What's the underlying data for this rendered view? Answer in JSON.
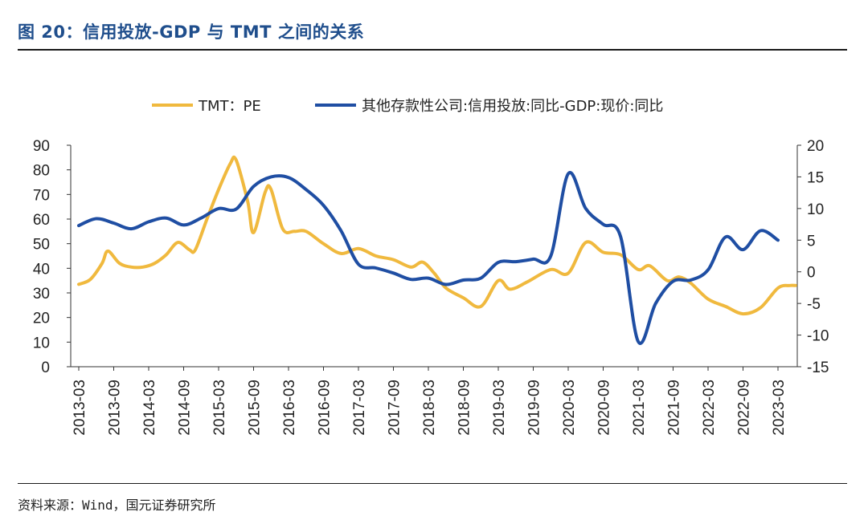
{
  "figure": {
    "title": "图 20：信用投放-GDP 与 TMT 之间的关系",
    "source": "资料来源：Wind，国元证券研究所"
  },
  "colors": {
    "tmt_pe": "#f0b93e",
    "credit_gap": "#1f4ea3",
    "title_blue": "#1f4e8c"
  },
  "chart_data": {
    "type": "line",
    "title": "",
    "x_tick_labels": [
      "2013-03",
      "2013-09",
      "2014-03",
      "2014-09",
      "2015-03",
      "2015-09",
      "2016-03",
      "2016-09",
      "2017-03",
      "2017-09",
      "2018-03",
      "2018-09",
      "2019-03",
      "2019-09",
      "2020-03",
      "2020-09",
      "2021-03",
      "2021-09",
      "2022-03",
      "2022-09",
      "2023-03"
    ],
    "left_axis": {
      "ylim": [
        0,
        90
      ],
      "ticks": [
        0,
        10,
        20,
        30,
        40,
        50,
        60,
        70,
        80,
        90
      ]
    },
    "right_axis": {
      "ylim": [
        -15,
        20
      ],
      "ticks": [
        -15,
        -10,
        -5,
        0,
        5,
        10,
        15,
        20
      ]
    },
    "legend_position": "top-center",
    "grid": false,
    "series": [
      {
        "name": "TMT：PE",
        "axis": "left",
        "points": [
          [
            "2013-03",
            33.5
          ],
          [
            "2013-05",
            35.5
          ],
          [
            "2013-07",
            42
          ],
          [
            "2013-08",
            47
          ],
          [
            "2013-10",
            42
          ],
          [
            "2013-12",
            40.5
          ],
          [
            "2014-02",
            40.5
          ],
          [
            "2014-04",
            42
          ],
          [
            "2014-06",
            45.5
          ],
          [
            "2014-08",
            50.5
          ],
          [
            "2014-10",
            47.5
          ],
          [
            "2014-11",
            47.5
          ],
          [
            "2015-01",
            60
          ],
          [
            "2015-03",
            72
          ],
          [
            "2015-05",
            82.5
          ],
          [
            "2015-06",
            84
          ],
          [
            "2015-08",
            67
          ],
          [
            "2015-09",
            54.5
          ],
          [
            "2015-11",
            71
          ],
          [
            "2015-12",
            72
          ],
          [
            "2016-02",
            56
          ],
          [
            "2016-04",
            55
          ],
          [
            "2016-06",
            55
          ],
          [
            "2016-09",
            50
          ],
          [
            "2016-12",
            46
          ],
          [
            "2017-03",
            48
          ],
          [
            "2017-06",
            45
          ],
          [
            "2017-09",
            43.5
          ],
          [
            "2017-12",
            40.5
          ],
          [
            "2018-02",
            42.5
          ],
          [
            "2018-04",
            38
          ],
          [
            "2018-06",
            32
          ],
          [
            "2018-09",
            28
          ],
          [
            "2018-12",
            24.5
          ],
          [
            "2019-03",
            35
          ],
          [
            "2019-05",
            31.5
          ],
          [
            "2019-08",
            34.5
          ],
          [
            "2019-12",
            39.5
          ],
          [
            "2020-03",
            38
          ],
          [
            "2020-06",
            50.5
          ],
          [
            "2020-09",
            46.5
          ],
          [
            "2020-12",
            45.5
          ],
          [
            "2021-03",
            39.5
          ],
          [
            "2021-05",
            41
          ],
          [
            "2021-08",
            35
          ],
          [
            "2021-10",
            36.5
          ],
          [
            "2021-12",
            34
          ],
          [
            "2022-03",
            27.5
          ],
          [
            "2022-06",
            24.5
          ],
          [
            "2022-09",
            21.5
          ],
          [
            "2022-12",
            24
          ],
          [
            "2023-03",
            32
          ],
          [
            "2023-05",
            33
          ],
          [
            "2023-06",
            33
          ]
        ]
      },
      {
        "name": "其他存款性公司:信用投放:同比-GDP:现价:同比",
        "axis": "right",
        "points": [
          [
            "2013-03",
            7.3
          ],
          [
            "2013-06",
            8.4
          ],
          [
            "2013-09",
            7.7
          ],
          [
            "2013-12",
            6.8
          ],
          [
            "2014-03",
            7.9
          ],
          [
            "2014-06",
            8.5
          ],
          [
            "2014-09",
            7.4
          ],
          [
            "2014-12",
            8.5
          ],
          [
            "2015-03",
            10
          ],
          [
            "2015-06",
            9.9
          ],
          [
            "2015-09",
            13.5
          ],
          [
            "2015-12",
            15
          ],
          [
            "2016-03",
            14.9
          ],
          [
            "2016-06",
            13
          ],
          [
            "2016-09",
            10.5
          ],
          [
            "2016-12",
            6.5
          ],
          [
            "2017-03",
            1.2
          ],
          [
            "2017-06",
            0.6
          ],
          [
            "2017-09",
            -0.2
          ],
          [
            "2017-12",
            -1.2
          ],
          [
            "2018-03",
            -1
          ],
          [
            "2018-06",
            -2
          ],
          [
            "2018-09",
            -1.3
          ],
          [
            "2018-12",
            -1
          ],
          [
            "2019-03",
            1.5
          ],
          [
            "2019-06",
            1.6
          ],
          [
            "2019-09",
            2
          ],
          [
            "2019-12",
            2.5
          ],
          [
            "2020-03",
            15.5
          ],
          [
            "2020-06",
            10
          ],
          [
            "2020-09",
            7.5
          ],
          [
            "2020-12",
            5.5
          ],
          [
            "2021-03",
            -11
          ],
          [
            "2021-06",
            -5
          ],
          [
            "2021-09",
            -1.5
          ],
          [
            "2021-12",
            -1.3
          ],
          [
            "2022-03",
            0.3
          ],
          [
            "2022-06",
            5.5
          ],
          [
            "2022-09",
            3.5
          ],
          [
            "2022-12",
            6.5
          ],
          [
            "2023-03",
            5
          ]
        ]
      }
    ]
  }
}
